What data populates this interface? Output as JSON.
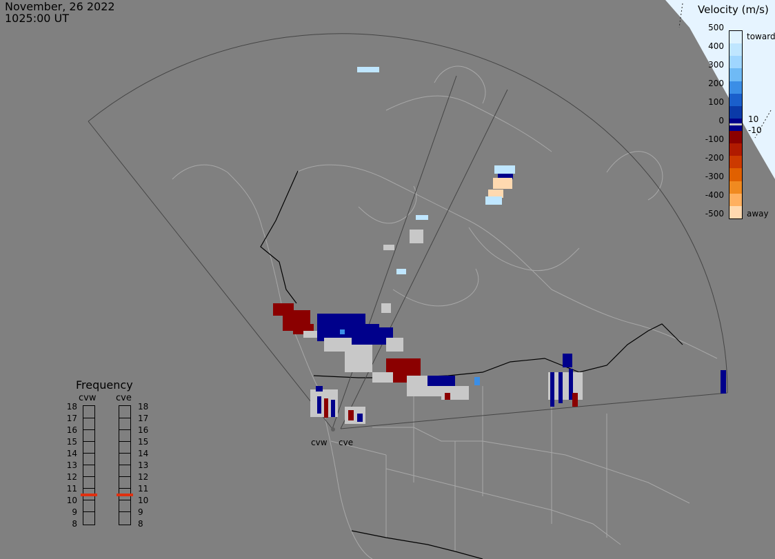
{
  "header": {
    "date": "November, 26 2022",
    "time": "1025:00 UT"
  },
  "colorbar": {
    "title": "Velocity (m/s)",
    "ticks": [
      "500",
      "400",
      "300",
      "200",
      "100",
      "0",
      "-100",
      "-200",
      "-300",
      "-400",
      "-500"
    ],
    "label_toward": "toward",
    "label_away": "away",
    "label_pos": "10",
    "label_neg": "-10",
    "colors": [
      "#dff3ff",
      "#bfe6ff",
      "#9fd6ff",
      "#6fbaf5",
      "#3b8ee6",
      "#1a5fcc",
      "#0a3aa8",
      "#00008b",
      "#8b0000",
      "#b01a00",
      "#cc3a00",
      "#e06000",
      "#f08a20",
      "#ffb060",
      "#ffd9b0"
    ]
  },
  "frequency": {
    "title": "Frequency",
    "radars": [
      {
        "name": "cvw",
        "selected_mhz": 11
      },
      {
        "name": "cve",
        "selected_mhz": 11
      }
    ],
    "ticks": [
      "18",
      "17",
      "16",
      "15",
      "14",
      "13",
      "12",
      "11",
      "10",
      "9",
      "8"
    ],
    "marker_color": "#e03010"
  },
  "sites": [
    {
      "name": "cvw"
    },
    {
      "name": "cve"
    }
  ],
  "colors": {
    "background": "#808080",
    "land_outline": "#a8a8a8",
    "border": "#000000",
    "fov": "#444444",
    "ground_scatter": "#c8c8c8",
    "night": "#e6f4ff"
  }
}
